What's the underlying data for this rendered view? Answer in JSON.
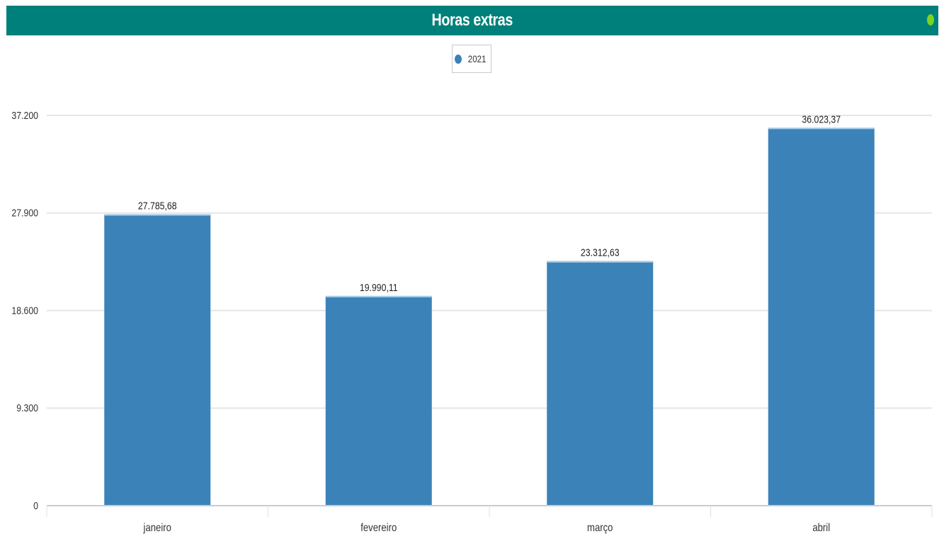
{
  "header": {
    "title": "Horas extras"
  },
  "colors": {
    "header_bg": "#00807a",
    "bar": "#3b82b9",
    "status_dot": "#7cd321",
    "grid": "#e6e6e6"
  },
  "legend": {
    "entries": [
      "2021"
    ]
  },
  "chart_data": {
    "type": "bar",
    "title": "Horas extras",
    "categories": [
      "janeiro",
      "fevereiro",
      "março",
      "abril"
    ],
    "series": [
      {
        "name": "2021",
        "values": [
          27785.68,
          19990.11,
          23312.63,
          36023.37
        ]
      }
    ],
    "data_labels": [
      "27.785,68",
      "19.990,11",
      "23.312,63",
      "36.023,37"
    ],
    "y_ticks": [
      0,
      9300,
      18600,
      27900,
      37200
    ],
    "y_tick_labels": [
      "0",
      "9.300",
      "18.600",
      "27.900",
      "37.200"
    ],
    "ylim": [
      0,
      37200
    ],
    "grid": true,
    "legend_position": "top-center",
    "xlabel": "",
    "ylabel": ""
  }
}
